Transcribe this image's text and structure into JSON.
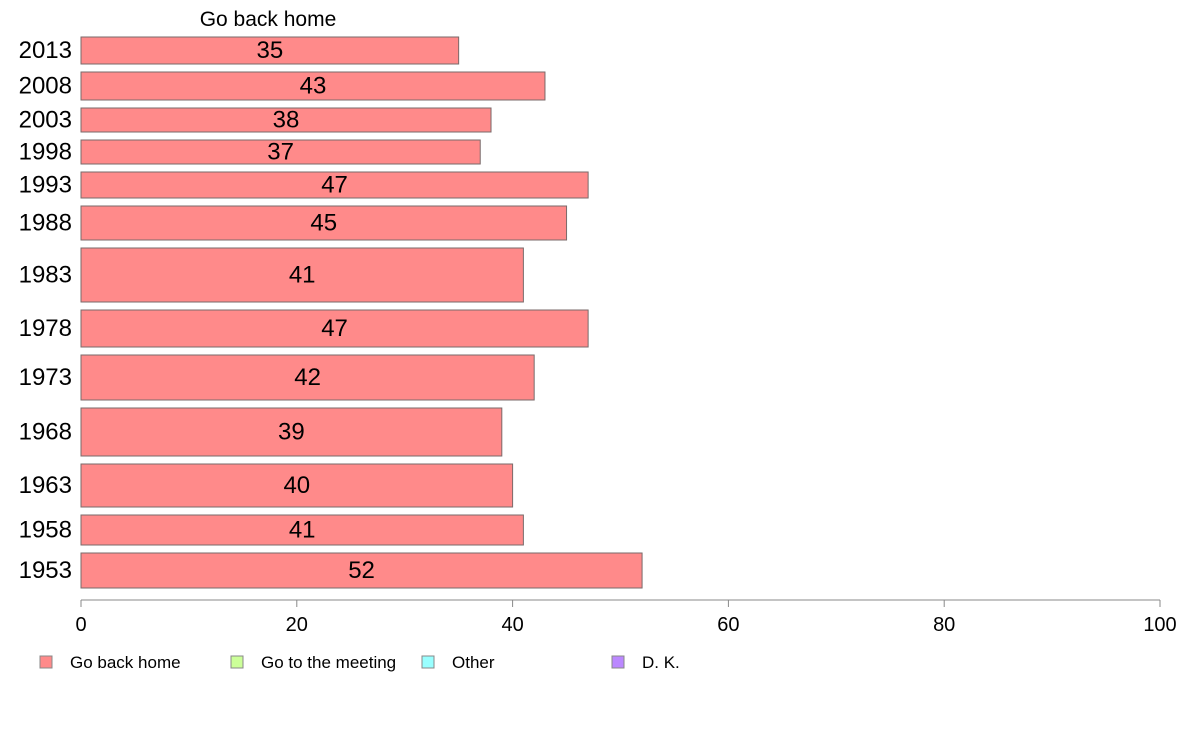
{
  "chart_data": {
    "type": "bar",
    "orientation": "horizontal",
    "series_title": "Go back home",
    "categories": [
      "2013",
      "2008",
      "2003",
      "1998",
      "1993",
      "1988",
      "1983",
      "1978",
      "1973",
      "1968",
      "1963",
      "1958",
      "1953"
    ],
    "series": [
      {
        "name": "Go back home",
        "color": "#ff8a8a",
        "values": [
          35,
          43,
          38,
          37,
          47,
          45,
          41,
          47,
          42,
          39,
          40,
          41,
          52
        ],
        "labels": [
          "35",
          "43",
          "38",
          "37",
          "47",
          "45",
          "41",
          "47",
          "42",
          "39",
          "40",
          "41",
          "52"
        ]
      }
    ],
    "xlim": [
      0,
      100
    ],
    "xticks": [
      0,
      20,
      40,
      60,
      80,
      100
    ],
    "xtick_labels": [
      "0",
      "20",
      "40",
      "60",
      "80",
      "100"
    ],
    "legend": [
      {
        "name": "Go back home",
        "color": "#ff8a8a"
      },
      {
        "name": "Go to the meeting",
        "color": "#ccff99"
      },
      {
        "name": "Other",
        "color": "#99ffff"
      },
      {
        "name": "D. K.",
        "color": "#bb88ff"
      }
    ],
    "legend_position": "bottom-left",
    "grid": false
  }
}
